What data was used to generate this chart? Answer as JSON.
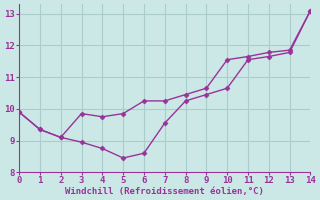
{
  "line1_x": [
    0,
    1,
    2,
    3,
    4,
    5,
    6,
    7,
    8,
    9,
    10,
    11,
    12,
    13,
    14
  ],
  "line1_y": [
    9.9,
    9.35,
    9.1,
    9.85,
    9.75,
    9.85,
    10.25,
    10.25,
    10.45,
    10.65,
    11.55,
    11.65,
    11.78,
    11.85,
    13.1
  ],
  "line2_x": [
    0,
    1,
    2,
    3,
    4,
    5,
    6,
    7,
    8,
    9,
    10,
    11,
    12,
    13,
    14
  ],
  "line2_y": [
    9.9,
    9.35,
    9.1,
    8.95,
    8.75,
    8.45,
    8.6,
    9.55,
    10.25,
    10.45,
    10.65,
    11.55,
    11.65,
    11.78,
    13.1
  ],
  "line_color": "#993399",
  "background_color": "#cce8e6",
  "grid_color": "#aacccc",
  "xlabel": "Windchill (Refroidissement éolien,°C)",
  "xlabel_color": "#993399",
  "tick_color": "#993399",
  "xlim": [
    0,
    14
  ],
  "ylim": [
    8.0,
    13.3
  ],
  "yticks": [
    8,
    9,
    10,
    11,
    12,
    13
  ],
  "xticks": [
    0,
    1,
    2,
    3,
    4,
    5,
    6,
    7,
    8,
    9,
    10,
    11,
    12,
    13,
    14
  ],
  "marker": "D",
  "marker_size": 2.5,
  "line_width": 1.0
}
